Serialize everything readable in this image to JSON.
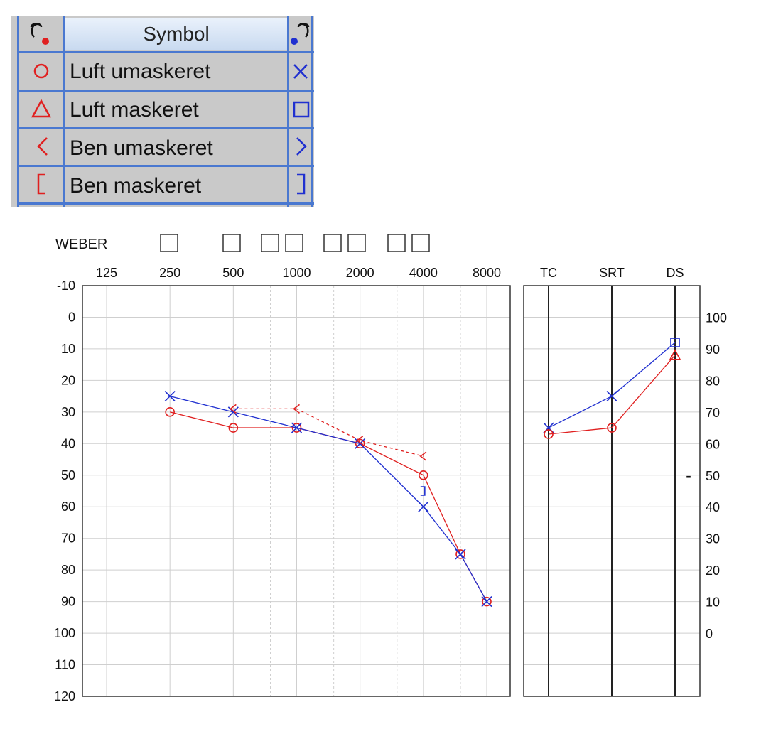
{
  "legend": {
    "header": "Symbol",
    "right_ear_icon": "ear-right-icon",
    "left_ear_icon": "ear-left-icon",
    "rows": [
      {
        "label": "Luft umaskeret",
        "right_symbol": "circle",
        "left_symbol": "cross"
      },
      {
        "label": "Luft maskeret",
        "right_symbol": "triangle",
        "left_symbol": "square"
      },
      {
        "label": "Ben umaskeret",
        "right_symbol": "angle-left",
        "left_symbol": "angle-right"
      },
      {
        "label": "Ben maskeret",
        "right_symbol": "bracket-left",
        "left_symbol": "bracket-right"
      }
    ],
    "colors": {
      "right": "#e02020",
      "left": "#2030d0",
      "grid": "#4a78d0"
    }
  },
  "weber": {
    "label": "WEBER",
    "box_count": 8
  },
  "chart_data": [
    {
      "type": "line",
      "x_tick_labels": [
        "125",
        "250",
        "500",
        "1000",
        "2000",
        "4000",
        "8000"
      ],
      "x_ticks": [
        125,
        250,
        500,
        1000,
        2000,
        4000,
        8000
      ],
      "x_scale": "log",
      "ylim": [
        -10,
        120
      ],
      "y_inverted": true,
      "y_ticks": [
        -10,
        0,
        10,
        20,
        30,
        40,
        50,
        60,
        70,
        80,
        90,
        100,
        110,
        120
      ],
      "series": [
        {
          "ear": "right",
          "symbol": "circle",
          "color": "#e02020",
          "line": "solid",
          "x": [
            250,
            500,
            1000,
            2000,
            4000,
            6000,
            8000
          ],
          "y": [
            30,
            35,
            35,
            40,
            50,
            75,
            90
          ]
        },
        {
          "ear": "left",
          "symbol": "cross",
          "color": "#2030d0",
          "line": "solid",
          "x": [
            250,
            500,
            1000,
            2000,
            4000,
            6000,
            8000
          ],
          "y": [
            25,
            30,
            35,
            40,
            60,
            75,
            90
          ]
        },
        {
          "ear": "right",
          "symbol": "angle-left",
          "color": "#e02020",
          "line": "dashed",
          "x": [
            500,
            1000,
            2000,
            4000
          ],
          "y": [
            29,
            29,
            39,
            44
          ]
        },
        {
          "ear": "left",
          "symbol": "bracket-right",
          "color": "#2030d0",
          "line": "none",
          "x": [
            4000
          ],
          "y": [
            55
          ]
        }
      ]
    },
    {
      "type": "line",
      "categories": [
        "TC",
        "SRT",
        "DS"
      ],
      "ylim_left": [
        -10,
        120
      ],
      "y_inverted": true,
      "right_axis_ticks": [
        100,
        90,
        80,
        70,
        60,
        50,
        40,
        30,
        20,
        10,
        0
      ],
      "series": [
        {
          "ear": "left",
          "color": "#2030d0",
          "symbols": [
            "cross",
            "cross",
            "square"
          ],
          "y": [
            35,
            25,
            8
          ]
        },
        {
          "ear": "right",
          "color": "#e02020",
          "symbols": [
            "circle",
            "circle",
            "triangle"
          ],
          "y": [
            37,
            35,
            12
          ]
        }
      ],
      "marker_mark": "-",
      "marker_y": 50
    }
  ]
}
